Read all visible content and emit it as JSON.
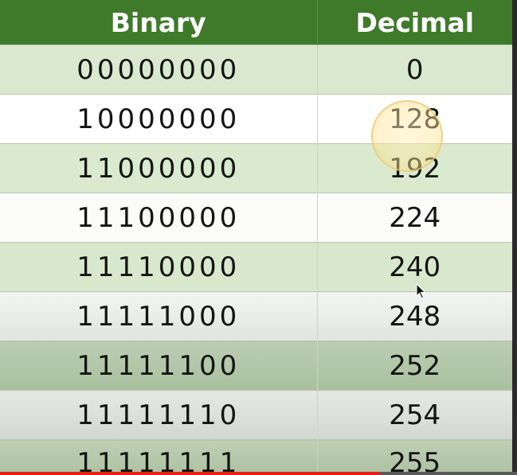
{
  "table": {
    "headers": {
      "binary": "Binary",
      "decimal": "Decimal"
    },
    "rows": [
      {
        "binary": "00000000",
        "decimal": "0"
      },
      {
        "binary": "10000000",
        "decimal": "128"
      },
      {
        "binary": "11000000",
        "decimal": "192"
      },
      {
        "binary": "11100000",
        "decimal": "224"
      },
      {
        "binary": "11110000",
        "decimal": "240"
      },
      {
        "binary": "11111000",
        "decimal": "248"
      },
      {
        "binary": "11111100",
        "decimal": "252"
      },
      {
        "binary": "11111110",
        "decimal": "254"
      },
      {
        "binary": "11111111",
        "decimal": "255"
      }
    ]
  },
  "colors": {
    "header_bg": "#3f7a2a",
    "header_text": "#ffffff",
    "row_green": "#d8e9cf",
    "row_white": "#ffffff",
    "progress": "#e62117"
  },
  "player": {
    "progress_fraction": 0.735,
    "cursor_icon": "mouse-pointer-icon",
    "highlight": "cursor-highlight-circle"
  }
}
